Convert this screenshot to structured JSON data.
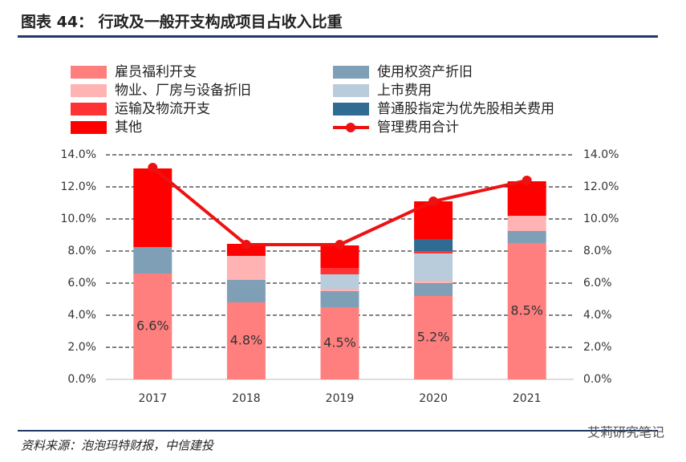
{
  "chart_data": {
    "type": "bar",
    "title": "图表 44：  行政及一般开支构成项目占收入比重",
    "source": "资料来源：泡泡玛特财报，中信建投",
    "watermark": "艾莉研究笔记",
    "categories": [
      "2017",
      "2018",
      "2019",
      "2020",
      "2021"
    ],
    "series": [
      {
        "name": "雇员福利开支",
        "color": "#ff7f7f",
        "values": [
          6.6,
          4.8,
          4.5,
          5.2,
          8.5
        ],
        "value_labels": [
          "6.6%",
          "4.8%",
          "4.5%",
          "5.2%",
          "8.5%"
        ]
      },
      {
        "name": "使用权资产折旧",
        "color": "#7f9fb7",
        "values": [
          1.65,
          1.4,
          1.0,
          0.8,
          0.75
        ]
      },
      {
        "name": "物业、厂房与设备折旧",
        "color": "#ffb3b3",
        "values": [
          null,
          1.5,
          0.15,
          0.15,
          0.95
        ]
      },
      {
        "name": "上市费用",
        "color": "#b8ccdc",
        "values": [
          null,
          null,
          0.9,
          1.7,
          null
        ]
      },
      {
        "name": "运输及物流开支",
        "color": "#ff3333",
        "values": [
          null,
          null,
          0.4,
          0.15,
          null
        ]
      },
      {
        "name": "普通股指定为优先股相关费用",
        "color": "#2f6b93",
        "values": [
          null,
          null,
          null,
          0.75,
          null
        ]
      },
      {
        "name": "其他",
        "color": "#ff0000",
        "values": [
          4.9,
          0.75,
          1.4,
          2.35,
          2.15
        ]
      },
      {
        "name": "管理费用合计",
        "color": "#ee1111",
        "type": "line",
        "axis": "y2",
        "values": [
          13.2,
          8.4,
          8.4,
          11.1,
          12.4
        ]
      }
    ],
    "ylim": [
      0,
      14
    ],
    "y2lim": [
      0,
      14
    ],
    "yticks": [
      {
        "value": 0,
        "label": "0.0%"
      },
      {
        "value": 2,
        "label": "2.0%"
      },
      {
        "value": 4,
        "label": "4.0%"
      },
      {
        "value": 6,
        "label": "6.0%"
      },
      {
        "value": 8,
        "label": "8.0%"
      },
      {
        "value": 10,
        "label": "10.0%"
      },
      {
        "value": 12,
        "label": "12.0%"
      },
      {
        "value": 14,
        "label": "14.0%"
      }
    ],
    "y2ticks": [
      {
        "value": 0,
        "label": "0.0%"
      },
      {
        "value": 2,
        "label": "2.0%"
      },
      {
        "value": 4,
        "label": "4.0%"
      },
      {
        "value": 6,
        "label": "6.0%"
      },
      {
        "value": 8,
        "label": "8.0%"
      },
      {
        "value": 10,
        "label": "10.0%"
      },
      {
        "value": 12,
        "label": "12.0%"
      },
      {
        "value": 14,
        "label": "14.0%"
      }
    ],
    "grid": true
  }
}
